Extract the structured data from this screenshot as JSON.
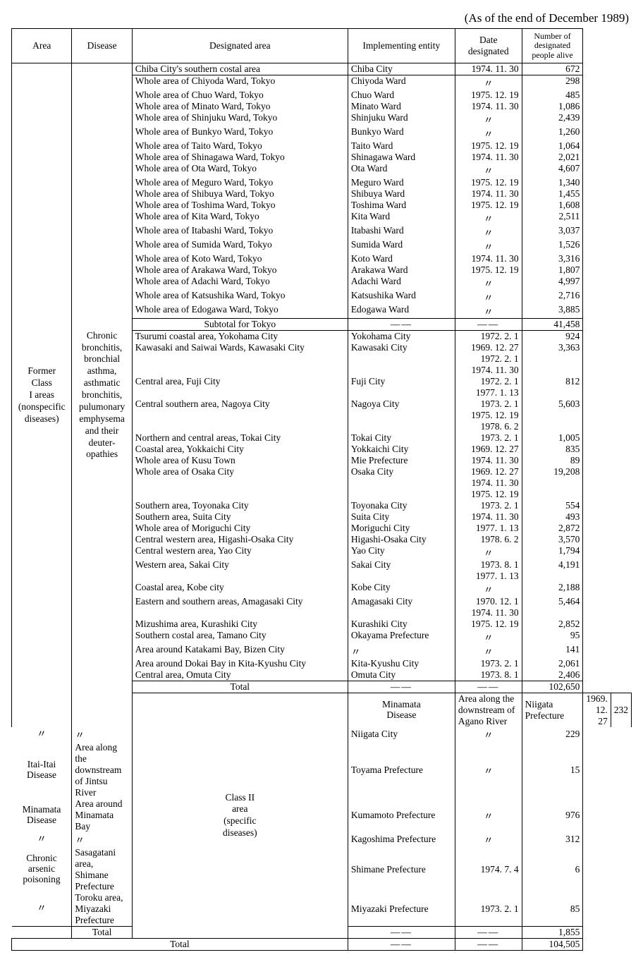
{
  "asof": "(As of the end of December 1989)",
  "headers": {
    "area": "Area",
    "disease": "Disease",
    "desig_area": "Designated area",
    "entity": "Implementing entity",
    "date": "Date designated",
    "count": "Number of designated people alive"
  },
  "class1": {
    "area_label": "Former Class I areas (nonspecific diseases)",
    "disease_label": "Chronic bronchitis, bronchial asthma, asthmatic bronchitis, pulumonary emphysema and their deuter- opathies",
    "block1": {
      "chiba": {
        "area": "Chiba City's southern costal area",
        "entity": "Chiba City",
        "date": "1974. 11. 30",
        "count": "672"
      },
      "tokyo": [
        {
          "area": "Whole area of Chiyoda Ward, Tokyo",
          "entity": "Chiyoda Ward",
          "date": "〃",
          "count": "298"
        },
        {
          "area": "Whole area of Chuo Ward, Tokyo",
          "entity": "Chuo Ward",
          "date": "1975. 12. 19",
          "count": "485"
        },
        {
          "area": "Whole area of Minato Ward, Tokyo",
          "entity": "Minato Ward",
          "date": "1974. 11. 30",
          "count": "1,086"
        },
        {
          "area": "Whole area of Shinjuku Ward, Tokyo",
          "entity": "Shinjuku Ward",
          "date": "〃",
          "count": "2,439"
        },
        {
          "area": "Whole area of Bunkyo Ward, Tokyo",
          "entity": "Bunkyo Ward",
          "date": "〃",
          "count": "1,260"
        },
        {
          "area": "Whole area of Taito Ward, Tokyo",
          "entity": "Taito Ward",
          "date": "1975. 12. 19",
          "count": "1,064"
        },
        {
          "area": "Whole area of Shinagawa Ward, Tokyo",
          "entity": "Shinagawa Ward",
          "date": "1974. 11. 30",
          "count": "2,021"
        },
        {
          "area": "Whole area of Ota Ward, Tokyo",
          "entity": "Ota Ward",
          "date": "〃",
          "count": "4,607"
        },
        {
          "area": "Whole area of Meguro Ward, Tokyo",
          "entity": "Meguro Ward",
          "date": "1975. 12. 19",
          "count": "1,340"
        },
        {
          "area": "Whole area of Shibuya Ward, Tokyo",
          "entity": "Shibuya Ward",
          "date": "1974. 11. 30",
          "count": "1,455"
        },
        {
          "area": "Whole area of Toshima Ward, Tokyo",
          "entity": "Toshima Ward",
          "date": "1975. 12. 19",
          "count": "1,608"
        },
        {
          "area": "Whole area of Kita Ward, Tokyo",
          "entity": "Kita Ward",
          "date": "〃",
          "count": "2,511"
        },
        {
          "area": "Whole area of Itabashi Ward, Tokyo",
          "entity": "Itabashi Ward",
          "date": "〃",
          "count": "3,037"
        },
        {
          "area": "Whole area of Sumida Ward, Tokyo",
          "entity": "Sumida Ward",
          "date": "〃",
          "count": "1,526"
        },
        {
          "area": "Whole area of Koto Ward, Tokyo",
          "entity": "Koto Ward",
          "date": "1974. 11. 30",
          "count": "3,316"
        },
        {
          "area": "Whole area of Arakawa Ward, Tokyo",
          "entity": "Arakawa Ward",
          "date": "1975. 12. 19",
          "count": "1,807"
        },
        {
          "area": "Whole area of Adachi Ward, Tokyo",
          "entity": "Adachi Ward",
          "date": "〃",
          "count": "4,997"
        },
        {
          "area": "Whole area of Katsushika Ward, Tokyo",
          "entity": "Katsushika Ward",
          "date": "〃",
          "count": "2,716"
        },
        {
          "area": "Whole area of Edogawa Ward, Tokyo",
          "entity": "Edogawa Ward",
          "date": "〃",
          "count": "3,885"
        }
      ],
      "subtotal": {
        "label": "Subtotal for Tokyo",
        "date": "——",
        "entity": "——",
        "count": "41,458"
      }
    },
    "block2": [
      {
        "area": "Tsurumi coastal area, Yokohama City",
        "entity": "Yokohama City",
        "date": [
          "1972.  2.  1"
        ],
        "count": "924"
      },
      {
        "area": "Kawasaki and Saiwai Wards, Kawasaki City",
        "entity": "Kawasaki City",
        "date": [
          "1969. 12. 27",
          "1972.  2.  1",
          "1974. 11. 30"
        ],
        "count": "3,363"
      },
      {
        "area": "Central area, Fuji City",
        "entity": "Fuji City",
        "date": [
          "1972.  2.  1",
          "1977.  1. 13"
        ],
        "count": "812"
      },
      {
        "area": "Central southern area, Nagoya City",
        "entity": "Nagoya City",
        "date": [
          "1973.  2.  1",
          "1975. 12. 19",
          "1978.  6.  2"
        ],
        "count": "5,603"
      },
      {
        "area": "Northern and central areas, Tokai City",
        "entity": "Tokai City",
        "date": [
          "1973.  2.  1"
        ],
        "count": "1,005"
      },
      {
        "area": "Coastal area, Yokkaichi City",
        "entity": "Yokkaichi City",
        "date": [
          "1969. 12. 27"
        ],
        "count": "835"
      },
      {
        "area": "Whole area of Kusu Town",
        "entity": "Mie Prefecture",
        "date": [
          "1974. 11. 30"
        ],
        "count": "89"
      },
      {
        "area": "Whole area of Osaka City",
        "entity": "Osaka City",
        "date": [
          "1969. 12. 27",
          "1974. 11. 30",
          "1975. 12. 19"
        ],
        "count": "19,208"
      },
      {
        "area": "Southern area, Toyonaka City",
        "entity": "Toyonaka City",
        "date": [
          "1973.  2.  1"
        ],
        "count": "554"
      },
      {
        "area": "Southern area, Suita City",
        "entity": "Suita City",
        "date": [
          "1974. 11. 30"
        ],
        "count": "493"
      },
      {
        "area": "Whole area of Moriguchi City",
        "entity": "Moriguchi City",
        "date": [
          "1977.  1. 13"
        ],
        "count": "2,872"
      },
      {
        "area": "Central western area, Higashi-Osaka City",
        "entity": "Higashi-Osaka City",
        "date": [
          "1978.  6.  2"
        ],
        "count": "3,570"
      },
      {
        "area": "Central western area, Yao City",
        "entity": "Yao City",
        "date": [
          "〃"
        ],
        "count": "1,794"
      },
      {
        "area": "Western area, Sakai City",
        "entity": "Sakai City",
        "date": [
          "1973.  8.  1",
          "1977.  1. 13"
        ],
        "count": "4,191"
      },
      {
        "area": "Coastal area, Kobe city",
        "entity": "Kobe City",
        "date": [
          "〃"
        ],
        "count": "2,188"
      },
      {
        "area": "Eastern and southern areas, Amagasaki City",
        "entity": "Amagasaki City",
        "date": [
          "1970. 12.  1",
          "1974. 11. 30"
        ],
        "count": "5,464"
      },
      {
        "area": "Mizushima area, Kurashiki City",
        "entity": "Kurashiki City",
        "date": [
          "1975. 12. 19"
        ],
        "count": "2,852"
      },
      {
        "area": "Southern costal area, Tamano City",
        "entity": "Okayama Prefecture",
        "date": [
          "〃"
        ],
        "count": "95"
      },
      {
        "area": "Area around Katakami Bay, Bizen City",
        "entity": "〃",
        "date": [
          "〃"
        ],
        "count": "141"
      },
      {
        "area": "Area around Dokai Bay in Kita-Kyushu City",
        "entity": "Kita-Kyushu City",
        "date": [
          "1973.  2.  1"
        ],
        "count": "2,061"
      },
      {
        "area": "Central area, Omuta City",
        "entity": "Omuta City",
        "date": [
          "1973.  8.  1"
        ],
        "count": "2,406"
      }
    ],
    "total": {
      "label": "Total",
      "count": "102,650"
    }
  },
  "class2": {
    "area_label": "Class II area (specific diseases)",
    "rows": [
      {
        "disease": "Minamata Disease",
        "area": "Area along the downstream of Agano River",
        "entity": "Niigata Prefecture",
        "date": "1969. 12. 27",
        "count": "232"
      },
      {
        "disease": "〃",
        "area": "〃",
        "entity": "Niigata City",
        "date": "〃",
        "count": "229"
      },
      {
        "disease": "Itai-Itai Disease",
        "area": "Area along the downstream of Jintsu River",
        "entity": "Toyama Prefecture",
        "date": "〃",
        "count": "15"
      },
      {
        "disease": "Minamata Disease",
        "area": "Area around Minamata Bay",
        "entity": "Kumamoto Prefecture",
        "date": "〃",
        "count": "976"
      },
      {
        "disease": "〃",
        "area": "〃",
        "entity": "Kagoshima Prefecture",
        "date": "〃",
        "count": "312"
      },
      {
        "disease": "Chronic arsenic poisoning",
        "area": "Sasagatani area, Shimane Prefecture",
        "entity": "Shimane Prefecture",
        "date": "1974.  7.  4",
        "count": "6"
      },
      {
        "disease": "〃",
        "area": "Toroku area, Miyazaki Prefecture",
        "entity": "Miyazaki Prefecture",
        "date": "1973.  2.  1",
        "count": "85"
      }
    ],
    "total": {
      "label": "Total",
      "count": "1,855"
    }
  },
  "grand_total": {
    "label": "Total",
    "count": "104,505"
  }
}
